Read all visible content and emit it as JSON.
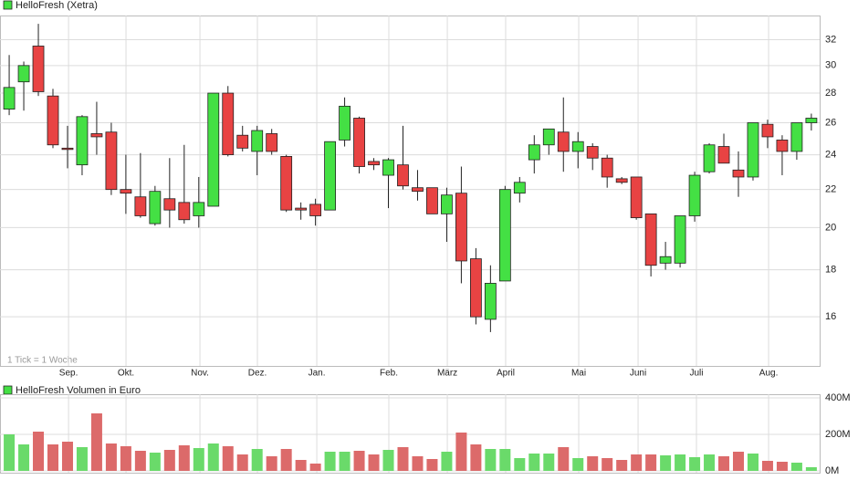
{
  "chart_data": [
    {
      "type": "candlestick",
      "legend": "HelloFresh (Xetra)",
      "annotation": "1 Tick = 1 Woche",
      "up_color": "#44e044",
      "down_color": "#e84343",
      "log_scale": true,
      "grid": true,
      "x": [
        0,
        1,
        2,
        3,
        4,
        5,
        6,
        7,
        8,
        9,
        10,
        11,
        12,
        13,
        14,
        15,
        16,
        17,
        18,
        19,
        20,
        21,
        22,
        23,
        24,
        25,
        26,
        27,
        28,
        29,
        30,
        31,
        32,
        33,
        34,
        35,
        36,
        37,
        38,
        39,
        40,
        41,
        42,
        43,
        44,
        45,
        46,
        47,
        48,
        49,
        50,
        51,
        52,
        53,
        54,
        55
      ],
      "open": [
        26.9,
        28.8,
        31.5,
        27.8,
        24.4,
        23.4,
        25.3,
        25.4,
        22.0,
        21.6,
        20.2,
        21.5,
        21.3,
        20.6,
        21.1,
        28.0,
        25.2,
        24.2,
        25.3,
        23.9,
        21.0,
        21.2,
        20.9,
        24.9,
        26.3,
        23.6,
        22.8,
        23.4,
        22.1,
        22.1,
        20.7,
        21.8,
        18.5,
        15.9,
        17.5,
        21.8,
        23.7,
        24.6,
        25.4,
        24.2,
        24.5,
        23.8,
        22.6,
        22.7,
        20.7,
        18.3,
        18.3,
        20.6,
        23.0,
        24.5,
        23.1,
        22.7,
        25.9,
        24.9,
        24.2,
        26.0
      ],
      "high": [
        30.8,
        30.3,
        33.3,
        28.3,
        25.8,
        26.5,
        27.4,
        26.0,
        24.0,
        24.1,
        22.2,
        23.8,
        24.6,
        22.7,
        28.0,
        28.5,
        25.8,
        25.8,
        25.6,
        24.0,
        21.3,
        21.5,
        24.8,
        27.7,
        26.4,
        23.8,
        23.8,
        25.8,
        23.1,
        22.1,
        22.1,
        23.3,
        19.0,
        18.2,
        22.2,
        22.7,
        25.2,
        25.6,
        27.7,
        25.4,
        24.7,
        24.0,
        22.7,
        22.7,
        20.7,
        19.3,
        20.6,
        23.0,
        24.7,
        25.3,
        24.2,
        26.0,
        26.2,
        25.2,
        26.0,
        26.6
      ],
      "low": [
        26.5,
        26.8,
        27.8,
        24.4,
        23.2,
        22.8,
        24.0,
        21.7,
        20.7,
        20.5,
        20.1,
        20.0,
        20.2,
        20.0,
        21.1,
        23.9,
        24.2,
        22.8,
        24.0,
        20.8,
        20.4,
        20.1,
        20.9,
        24.5,
        22.9,
        23.1,
        21.0,
        22.0,
        21.4,
        20.7,
        19.3,
        17.4,
        15.7,
        15.4,
        17.5,
        21.3,
        22.9,
        24.0,
        23.0,
        23.2,
        23.1,
        22.1,
        22.3,
        20.4,
        17.7,
        18.0,
        18.1,
        20.3,
        22.9,
        23.5,
        21.6,
        22.5,
        24.4,
        22.8,
        23.7,
        25.5
      ],
      "close": [
        28.4,
        30.0,
        28.1,
        24.6,
        24.35,
        26.4,
        25.1,
        22.0,
        21.8,
        20.6,
        21.9,
        20.9,
        20.4,
        21.3,
        28.0,
        24.0,
        24.4,
        25.5,
        24.2,
        20.9,
        20.9,
        20.6,
        24.8,
        27.1,
        23.3,
        23.4,
        23.7,
        22.2,
        21.9,
        20.7,
        21.7,
        18.4,
        16.0,
        17.4,
        22.0,
        22.4,
        24.6,
        25.6,
        24.2,
        24.8,
        23.8,
        22.7,
        22.4,
        20.5,
        18.2,
        18.6,
        20.6,
        22.8,
        24.6,
        23.5,
        22.7,
        26.0,
        25.1,
        24.2,
        26.0,
        26.3
      ],
      "xlim": [
        -0.63,
        55.57
      ],
      "xticks": [
        {
          "value": 4.07,
          "label": "Sep."
        },
        {
          "value": 8.01,
          "label": "Okt."
        },
        {
          "value": 13.08,
          "label": "Nov."
        },
        {
          "value": 17.02,
          "label": "Dez."
        },
        {
          "value": 21.09,
          "label": "Jan."
        },
        {
          "value": 26.03,
          "label": "Feb."
        },
        {
          "value": 30.04,
          "label": "März"
        },
        {
          "value": 34.04,
          "label": "April"
        },
        {
          "value": 39.05,
          "label": "Mai"
        },
        {
          "value": 43.12,
          "label": "Juni"
        },
        {
          "value": 47.12,
          "label": "Juli"
        },
        {
          "value": 52.07,
          "label": "Aug."
        }
      ],
      "ylim": [
        14.15,
        34
      ],
      "yticks": [
        16,
        18,
        20,
        22,
        24,
        26,
        28,
        30,
        32
      ]
    },
    {
      "type": "bar",
      "legend": "HelloFresh Volumen in Euro",
      "up_color": "#6ada6a",
      "down_color": "#dc6a6a",
      "grid": true,
      "x": [
        0,
        1,
        2,
        3,
        4,
        5,
        6,
        7,
        8,
        9,
        10,
        11,
        12,
        13,
        14,
        15,
        16,
        17,
        18,
        19,
        20,
        21,
        22,
        23,
        24,
        25,
        26,
        27,
        28,
        29,
        30,
        31,
        32,
        33,
        34,
        35,
        36,
        37,
        38,
        39,
        40,
        41,
        42,
        43,
        44,
        45,
        46,
        47,
        48,
        49,
        50,
        51,
        52,
        53,
        54,
        55
      ],
      "values": [
        200,
        145,
        215,
        145,
        160,
        130,
        315,
        150,
        135,
        110,
        100,
        115,
        140,
        125,
        150,
        135,
        90,
        120,
        80,
        120,
        60,
        40,
        105,
        105,
        110,
        90,
        115,
        130,
        80,
        65,
        105,
        210,
        145,
        120,
        120,
        70,
        95,
        95,
        130,
        70,
        80,
        70,
        60,
        90,
        90,
        85,
        90,
        75,
        90,
        80,
        105,
        95,
        55,
        50,
        45,
        20
      ],
      "xlim": [
        -0.63,
        55.57
      ],
      "ylim": [
        -10,
        420
      ],
      "yticks": [
        {
          "value": 0,
          "label": "0M"
        },
        {
          "value": 200,
          "label": "200M"
        },
        {
          "value": 400,
          "label": "400M"
        }
      ]
    }
  ]
}
